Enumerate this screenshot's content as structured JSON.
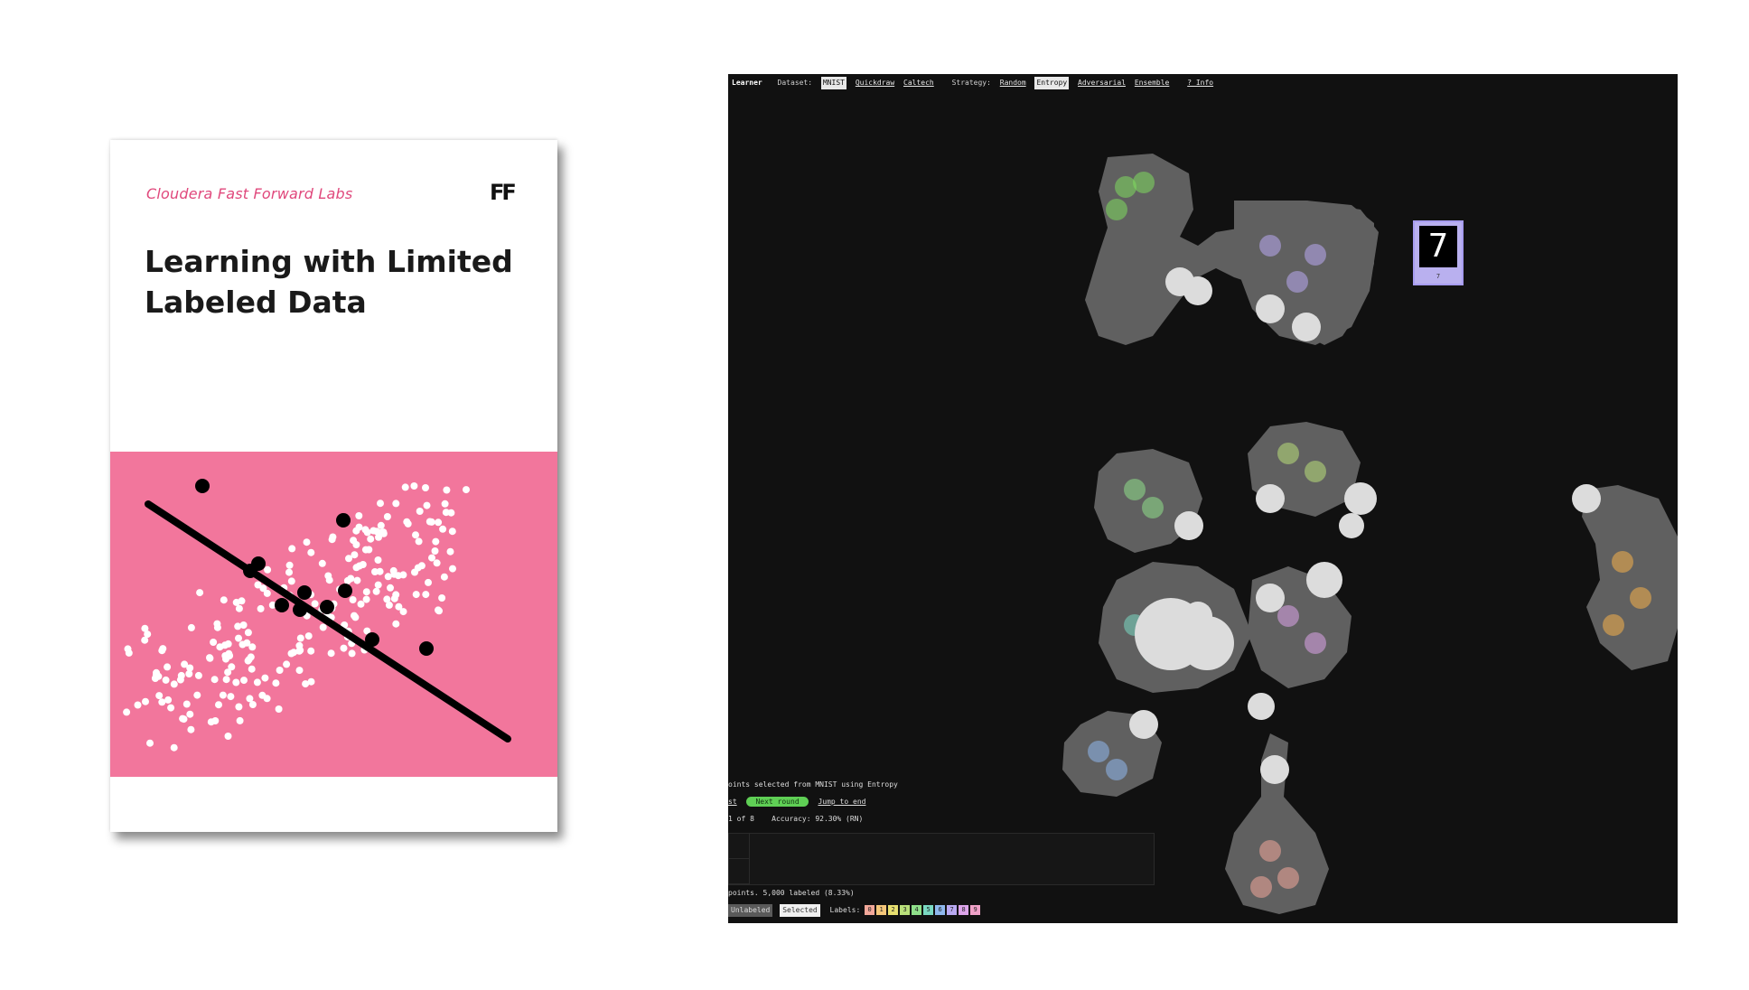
{
  "cover": {
    "publisher": "Cloudera Fast Forward Labs",
    "logo_text": "FF",
    "title_line1": "Learning with Limited",
    "title_line2": "Labeled Data",
    "colors": {
      "pink": "#f2769c",
      "publisher_pink": "#e0487c"
    }
  },
  "app": {
    "brand": "Learner",
    "dataset_label": "Dataset:",
    "datasets": [
      "MNIST",
      "Quickdraw",
      "Caltech"
    ],
    "selected_dataset": "MNIST",
    "strategy_label": "Strategy:",
    "strategies": [
      "Random",
      "Entropy",
      "Adversarial",
      "Ensemble"
    ],
    "selected_strategy": "Entropy",
    "info_link": "? Info",
    "tooltip": {
      "digit": "7",
      "label": "7"
    },
    "status": {
      "selected_text": "oints selected from MNIST using Entropy",
      "left_fragment": "st",
      "next_round_button": "Next round",
      "jump_link": "Jump to end",
      "round_text": "1 of 8",
      "accuracy_text": "Accuracy: 92.30% (RN)"
    },
    "counts_text": "points. 5,000 labeled (8.33%)",
    "legend": {
      "unlabeled": "Unlabeled",
      "selected": "Selected",
      "labels_label": "Labels:",
      "swatches": [
        {
          "label": "0",
          "color": "#f3a89a"
        },
        {
          "label": "1",
          "color": "#f5c77a"
        },
        {
          "label": "2",
          "color": "#e8e070"
        },
        {
          "label": "3",
          "color": "#b9e07a"
        },
        {
          "label": "4",
          "color": "#8fe08a"
        },
        {
          "label": "5",
          "color": "#7ad9c2"
        },
        {
          "label": "6",
          "color": "#8fb8ee"
        },
        {
          "label": "7",
          "color": "#b9a9f2"
        },
        {
          "label": "8",
          "color": "#dca4ea"
        },
        {
          "label": "9",
          "color": "#f0a2c8"
        }
      ]
    },
    "colors": {
      "background": "#111111",
      "cluster_gray": "#606060",
      "selected_white": "#dcdcdc",
      "next_button": "#5fcf55"
    }
  }
}
